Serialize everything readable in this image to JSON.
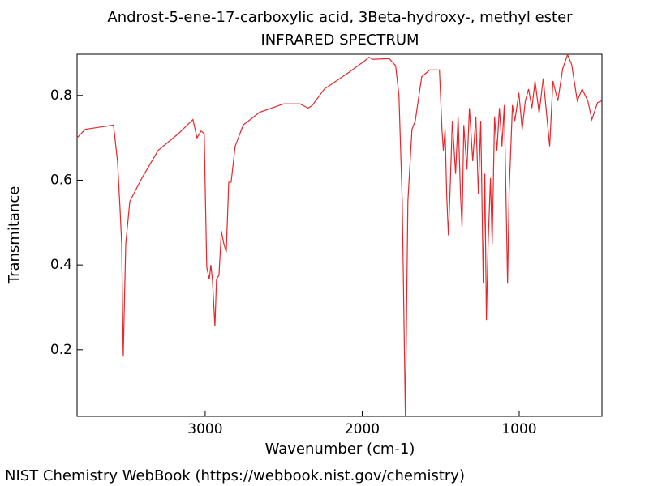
{
  "chart_data": {
    "type": "line",
    "title": "Androst-5-ene-17-carboxylic acid, 3Beta-hydroxy-, methyl ester",
    "subtitle": "INFRARED SPECTRUM",
    "x_label": "Wavenumber (cm-1)",
    "y_label": "Transmitance",
    "source": "NIST Chemistry WebBook (https://webbook.nist.gov/chemistry)",
    "color": "#e8262c",
    "xlim": [
      3816,
      473
    ],
    "ylim": [
      0.043,
      0.897
    ],
    "xticks": [
      3000,
      2000,
      1000
    ],
    "yticks": [
      0.2,
      0.4,
      0.6,
      0.8
    ],
    "x": [
      3816,
      3764,
      3584,
      3558,
      3542,
      3532,
      3522,
      3506,
      3480,
      3403,
      3300,
      3170,
      3078,
      3052,
      3026,
      3006,
      3000,
      2990,
      2974,
      2964,
      2954,
      2938,
      2928,
      2912,
      2897,
      2881,
      2866,
      2850,
      2835,
      2809,
      2758,
      2654,
      2500,
      2396,
      2345,
      2319,
      2241,
      2086,
      1983,
      1957,
      1932,
      1828,
      1787,
      1766,
      1745,
      1725,
      1709,
      1683,
      1662,
      1621,
      1570,
      1508,
      1492,
      1483,
      1472,
      1462,
      1451,
      1441,
      1426,
      1405,
      1389,
      1374,
      1364,
      1353,
      1333,
      1317,
      1296,
      1276,
      1260,
      1245,
      1229,
      1219,
      1209,
      1198,
      1183,
      1172,
      1157,
      1142,
      1126,
      1110,
      1095,
      1074,
      1064,
      1043,
      1028,
      1002,
      981,
      961,
      940,
      919,
      899,
      873,
      847,
      826,
      806,
      785,
      754,
      723,
      692,
      666,
      630,
      599,
      563,
      537,
      501,
      475
    ],
    "values": [
      0.7,
      0.72,
      0.73,
      0.643,
      0.53,
      0.45,
      0.184,
      0.45,
      0.55,
      0.605,
      0.67,
      0.71,
      0.743,
      0.7,
      0.716,
      0.71,
      0.585,
      0.395,
      0.366,
      0.4,
      0.366,
      0.255,
      0.366,
      0.376,
      0.48,
      0.45,
      0.43,
      0.595,
      0.595,
      0.68,
      0.73,
      0.76,
      0.78,
      0.78,
      0.77,
      0.776,
      0.815,
      0.854,
      0.882,
      0.89,
      0.885,
      0.887,
      0.87,
      0.8,
      0.55,
      0.043,
      0.55,
      0.72,
      0.74,
      0.844,
      0.86,
      0.86,
      0.72,
      0.67,
      0.72,
      0.567,
      0.47,
      0.567,
      0.74,
      0.615,
      0.75,
      0.567,
      0.49,
      0.73,
      0.625,
      0.77,
      0.645,
      0.75,
      0.567,
      0.74,
      0.356,
      0.615,
      0.27,
      0.45,
      0.605,
      0.45,
      0.75,
      0.67,
      0.77,
      0.68,
      0.777,
      0.356,
      0.575,
      0.777,
      0.74,
      0.806,
      0.72,
      0.787,
      0.815,
      0.77,
      0.834,
      0.758,
      0.84,
      0.758,
      0.68,
      0.834,
      0.787,
      0.863,
      0.896,
      0.873,
      0.787,
      0.815,
      0.787,
      0.743,
      0.783,
      0.787
    ]
  }
}
